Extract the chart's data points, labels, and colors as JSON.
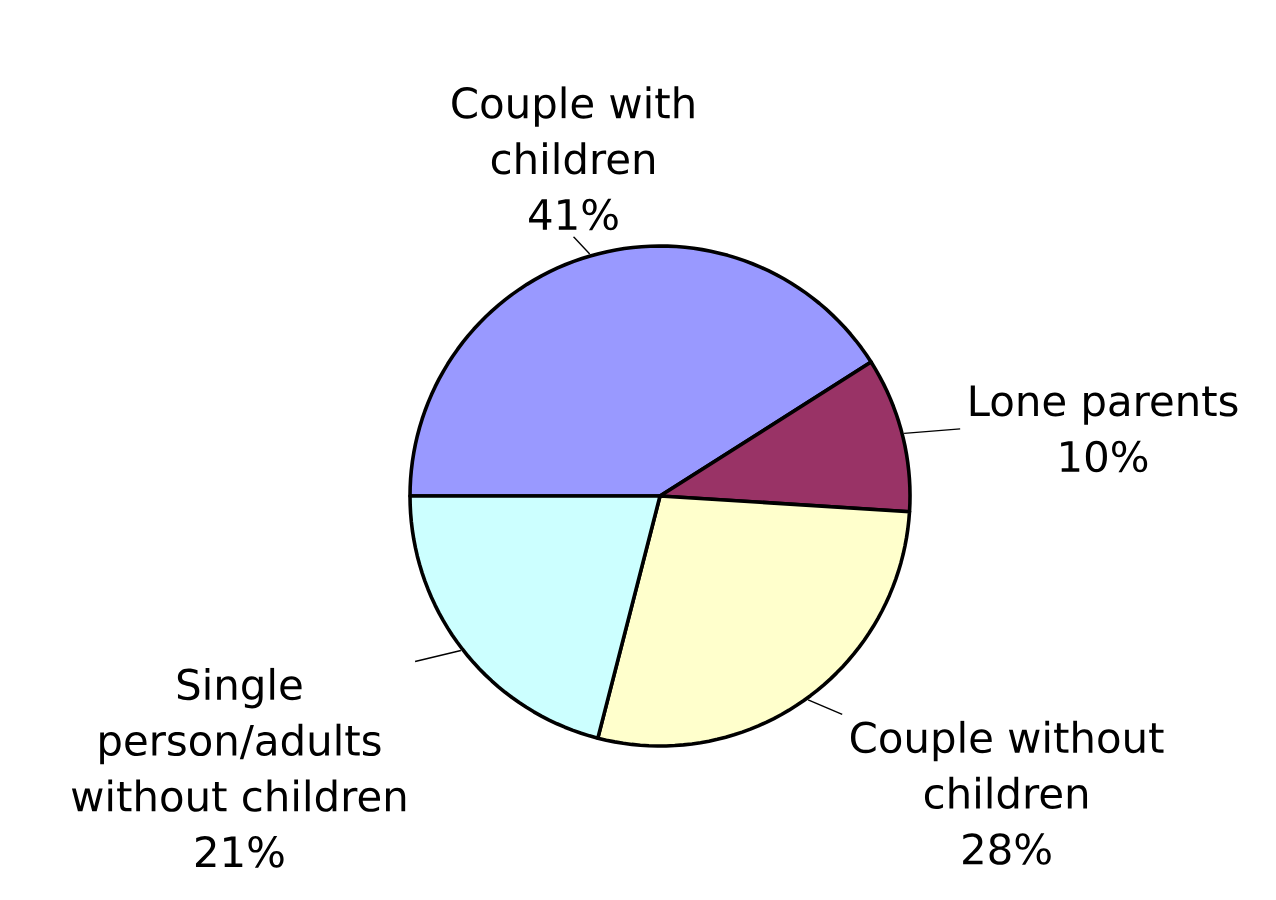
{
  "chart_data": {
    "type": "pie",
    "categories": [
      "Couple with children",
      "Lone parents",
      "Couple without children",
      "Single person/adults without children"
    ],
    "values": [
      41,
      10,
      28,
      21
    ],
    "colors": [
      "#9999ff",
      "#993366",
      "#ffffcc",
      "#ccffff"
    ],
    "value_labels": [
      "41%",
      "10%",
      "28%",
      "21%"
    ]
  }
}
